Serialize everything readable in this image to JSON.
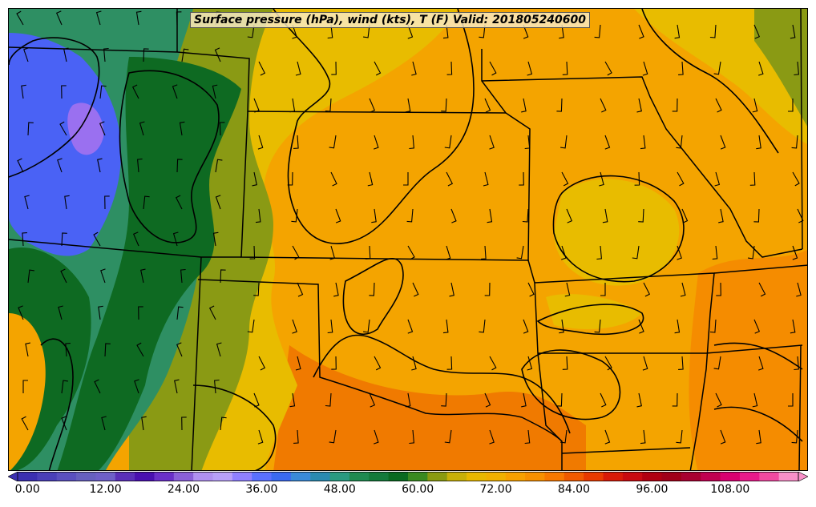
{
  "title": "Surface pressure (hPa), wind (kts), T (F) Valid: 201805240600",
  "colorbar": {
    "tick_labels": [
      "0.00",
      "12.00",
      "24.00",
      "36.00",
      "48.00",
      "60.00",
      "72.00",
      "84.00",
      "96.00",
      "108.00"
    ],
    "colors": [
      "#3b2fb0",
      "#4a3fb8",
      "#5a4fbf",
      "#665fbf",
      "#6e5fc8",
      "#5a2fb8",
      "#4a10b0",
      "#6a2fc8",
      "#8a5fd8",
      "#b090f0",
      "#b8a0f8",
      "#9080ff",
      "#5a70ff",
      "#3a6af0",
      "#3a8ad8",
      "#2a8ab0",
      "#2a9a80",
      "#1f8a50",
      "#147a3a",
      "#0a6a20",
      "#3a8a20",
      "#8a9a10",
      "#c8b008",
      "#e8b800",
      "#f0b000",
      "#f8a000",
      "#f89000",
      "#f87800",
      "#f05a00",
      "#e83a00",
      "#d81a08",
      "#c80a10",
      "#b00010",
      "#a00018",
      "#a80030",
      "#c00050",
      "#d80070",
      "#e81a8a",
      "#f04aa0",
      "#f890c8"
    ]
  },
  "colors": {
    "cold": "#4a62f5",
    "cool_teal": "#2e8f63",
    "dark_green": "#0e6a22",
    "olive": "#8a9a14",
    "yellow": "#e8bc00",
    "orange": "#f4a400",
    "dark_orange": "#f07a00",
    "contour": "#000000",
    "border": "#000000"
  }
}
